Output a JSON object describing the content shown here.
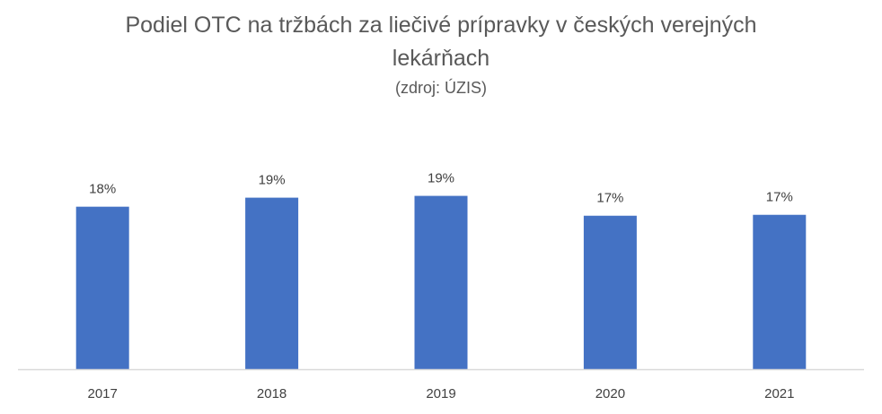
{
  "chart_data": {
    "type": "bar",
    "title": "Podiel OTC na tržbách za liečivé prípravky v českých verejných lekárňach",
    "subtitle": "(zdroj: ÚZIS)",
    "categories": [
      "2017",
      "2018",
      "2019",
      "2020",
      "2021"
    ],
    "values": [
      18,
      19,
      19.2,
      17,
      17.1
    ],
    "data_labels": [
      "18%",
      "19%",
      "19%",
      "17%",
      "17%"
    ],
    "ylim": [
      0,
      27
    ],
    "grid": false,
    "bar_color": "#4472C4",
    "axis_color": "#D9D9D9"
  }
}
